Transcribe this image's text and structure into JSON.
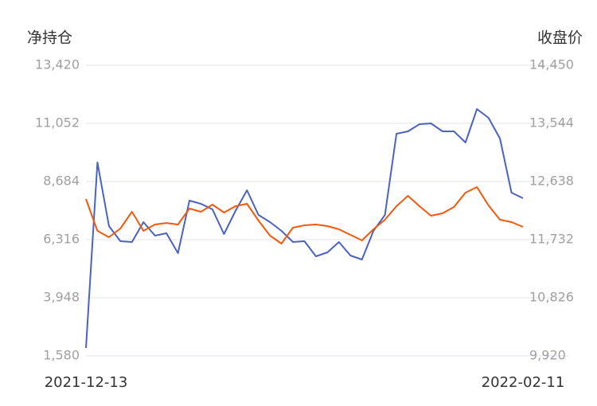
{
  "chart_data": {
    "type": "line",
    "y_label": "净持仓",
    "y2_label": "收盘价",
    "categories": [
      "2021-12-13",
      null,
      null,
      null,
      null,
      null,
      null,
      null,
      null,
      null,
      null,
      null,
      null,
      null,
      null,
      null,
      null,
      null,
      null,
      null,
      null,
      null,
      null,
      null,
      null,
      null,
      null,
      null,
      null,
      null,
      null,
      null,
      null,
      null,
      null,
      null,
      null,
      null,
      "2022-02-11"
    ],
    "series": [
      {
        "color": "#4a62c2",
        "axis": "y",
        "values": [
          1900,
          9463,
          6868,
          6251,
          6219,
          7030,
          6478,
          6576,
          5765,
          7906,
          7776,
          7549,
          6544,
          7484,
          8328,
          7322,
          7030,
          6673,
          6219,
          6251,
          5635,
          5797,
          6219,
          5668,
          5505,
          6673,
          7322,
          10631,
          10728,
          11020,
          11052,
          10728,
          10728,
          10274,
          11636,
          11280,
          10436,
          8230,
          8003
        ]
      },
      {
        "color": "#f4580c",
        "axis": "y2",
        "values": [
          12365,
          11868,
          11769,
          11906,
          12166,
          11868,
          11968,
          11992,
          11968,
          12216,
          12166,
          12278,
          12154,
          12253,
          12291,
          12030,
          11794,
          11670,
          11918,
          11955,
          11968,
          11943,
          11893,
          11806,
          11719,
          11893,
          12042,
          12253,
          12415,
          12253,
          12104,
          12142,
          12241,
          12464,
          12551,
          12266,
          12042,
          12005,
          11930
        ]
      }
    ],
    "ylim": [
      1580,
      13420
    ],
    "yticks": [
      {
        "value": 1580,
        "label": "1,580"
      },
      {
        "value": 3948,
        "label": "3,948"
      },
      {
        "value": 6316,
        "label": "6,316"
      },
      {
        "value": 8684,
        "label": "8,684"
      },
      {
        "value": 11052,
        "label": "11,052"
      },
      {
        "value": 13420,
        "label": "13,420"
      }
    ],
    "y2lim": [
      9920,
      14450
    ],
    "y2ticks": [
      {
        "value": 9920,
        "label": "9,920"
      },
      {
        "value": 10826,
        "label": "10,826"
      },
      {
        "value": 11732,
        "label": "11,732"
      },
      {
        "value": 12638,
        "label": "12,638"
      },
      {
        "value": 13544,
        "label": "13,544"
      },
      {
        "value": 14450,
        "label": "14,450"
      }
    ],
    "grid": true
  }
}
